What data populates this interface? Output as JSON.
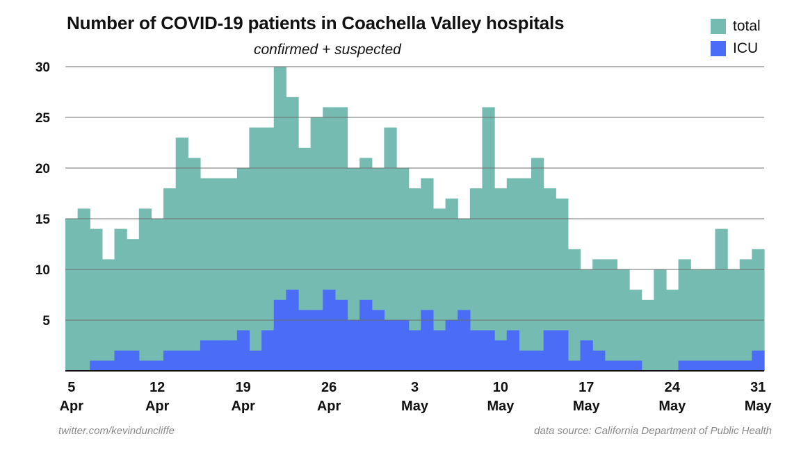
{
  "chart_data": {
    "type": "bar",
    "title": "Number of COVID-19 patients in Coachella Valley hospitals",
    "subtitle": "confirmed + suspected",
    "ylim": [
      0,
      30
    ],
    "yticks": [
      "5",
      "10",
      "15",
      "20",
      "25",
      "30"
    ],
    "ytick_values": [
      5,
      10,
      15,
      20,
      25,
      30
    ],
    "xticks": [
      {
        "day_index": 0,
        "day": "5",
        "month": "Apr"
      },
      {
        "day_index": 7,
        "day": "12",
        "month": "Apr"
      },
      {
        "day_index": 14,
        "day": "19",
        "month": "Apr"
      },
      {
        "day_index": 21,
        "day": "26",
        "month": "Apr"
      },
      {
        "day_index": 28,
        "day": "3",
        "month": "May"
      },
      {
        "day_index": 35,
        "day": "10",
        "month": "May"
      },
      {
        "day_index": 42,
        "day": "17",
        "month": "May"
      },
      {
        "day_index": 49,
        "day": "24",
        "month": "May"
      },
      {
        "day_index": 56,
        "day": "31",
        "month": "May"
      }
    ],
    "series": [
      {
        "name": "total",
        "color": "#76bbb1",
        "values": [
          15,
          16,
          14,
          11,
          14,
          13,
          16,
          15,
          18,
          23,
          21,
          19,
          19,
          19,
          20,
          24,
          24,
          30,
          27,
          22,
          25,
          26,
          26,
          20,
          21,
          20,
          24,
          20,
          18,
          19,
          16,
          17,
          15,
          18,
          26,
          18,
          19,
          19,
          21,
          18,
          17,
          12,
          10,
          11,
          11,
          10,
          8,
          7,
          10,
          8,
          11,
          10,
          10,
          14,
          10,
          11,
          12
        ]
      },
      {
        "name": "ICU",
        "color": "#4a6cf7",
        "values": [
          0,
          0,
          1,
          1,
          2,
          2,
          1,
          1,
          2,
          2,
          2,
          3,
          3,
          3,
          4,
          2,
          4,
          7,
          8,
          6,
          6,
          8,
          7,
          5,
          7,
          6,
          5,
          5,
          4,
          6,
          4,
          5,
          6,
          4,
          4,
          3,
          4,
          2,
          2,
          4,
          4,
          1,
          3,
          2,
          1,
          1,
          1,
          0,
          0,
          0,
          1,
          1,
          1,
          1,
          1,
          1,
          2
        ]
      }
    ],
    "legend": [
      "total",
      "ICU"
    ],
    "legend_position": "top-right",
    "grid": true
  },
  "footer": {
    "left": "twitter.com/kevinduncliffe",
    "right": "data source: California Department of Public Health"
  }
}
